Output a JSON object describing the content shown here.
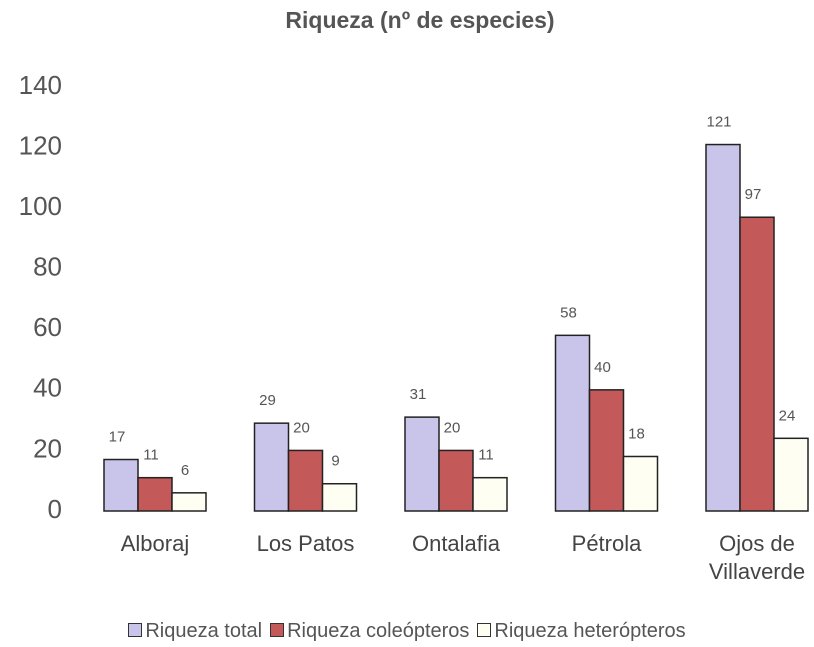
{
  "chart_data": {
    "type": "bar",
    "title": "Riqueza (nº de especies)",
    "categories": [
      "Alboraj",
      "Los Patos",
      "Ontalafia",
      "Pétrola",
      "Ojos de Villaverde"
    ],
    "series": [
      {
        "name": "Riqueza total",
        "color": "#c9c5ea",
        "values": [
          17,
          29,
          31,
          58,
          121
        ]
      },
      {
        "name": "Riqueza coleópteros",
        "color": "#c4595a",
        "values": [
          11,
          20,
          20,
          40,
          97
        ]
      },
      {
        "name": "Riqueza heterópteros",
        "color": "#fffef2",
        "values": [
          6,
          9,
          11,
          18,
          24
        ]
      }
    ],
    "ylim": [
      0,
      140
    ],
    "yticks": [
      0,
      20,
      40,
      60,
      80,
      100,
      120,
      140
    ],
    "grid": false,
    "legend": "bottom"
  }
}
